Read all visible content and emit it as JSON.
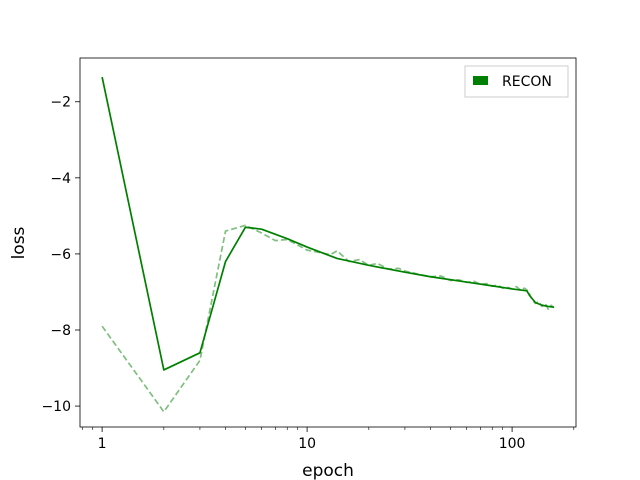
{
  "chart_data": {
    "type": "line",
    "xlabel": "epoch",
    "ylabel": "loss",
    "x_scale": "log",
    "xlim": [
      0.78,
      205
    ],
    "ylim": [
      -10.55,
      -0.85
    ],
    "x_major_ticks": [
      1,
      10,
      100
    ],
    "x_tick_labels": [
      "1",
      "10",
      "100"
    ],
    "y_ticks": [
      -10,
      -8,
      -6,
      -4,
      -2
    ],
    "y_tick_labels": [
      "−10",
      "−8",
      "−6",
      "−4",
      "−2"
    ],
    "grid": false,
    "legend": {
      "position": "upper right",
      "entries": [
        "RECON"
      ]
    },
    "series": [
      {
        "name": "RECON",
        "color": "#008000",
        "style": "solid",
        "x": [
          1,
          2,
          3,
          4,
          5,
          6,
          8,
          10,
          14,
          20,
          30,
          40,
          60,
          80,
          100,
          118,
          122,
          130,
          140,
          150,
          160
        ],
        "y": [
          -1.35,
          -9.05,
          -8.6,
          -6.2,
          -5.3,
          -5.35,
          -5.6,
          -5.82,
          -6.12,
          -6.3,
          -6.48,
          -6.6,
          -6.74,
          -6.84,
          -6.92,
          -6.97,
          -7.1,
          -7.28,
          -7.35,
          -7.38,
          -7.4
        ]
      },
      {
        "name": "",
        "color": "#008000",
        "opacity": 0.5,
        "style": "dashed",
        "x": [
          1,
          2,
          3,
          4,
          5,
          6,
          7,
          8,
          10,
          12,
          13,
          14,
          16,
          18,
          20,
          22,
          25,
          28,
          30,
          33,
          36,
          40,
          45,
          50,
          55,
          60,
          65,
          70,
          75,
          80,
          85,
          90,
          95,
          100,
          105,
          110,
          115,
          120,
          125,
          130,
          135,
          140,
          145,
          150,
          155,
          160
        ],
        "y": [
          -7.9,
          -10.15,
          -8.8,
          -5.4,
          -5.25,
          -5.45,
          -5.65,
          -5.62,
          -5.9,
          -5.98,
          -6.02,
          -5.92,
          -6.2,
          -6.15,
          -6.3,
          -6.25,
          -6.4,
          -6.38,
          -6.45,
          -6.5,
          -6.55,
          -6.6,
          -6.58,
          -6.7,
          -6.68,
          -6.75,
          -6.72,
          -6.8,
          -6.78,
          -6.85,
          -6.82,
          -6.9,
          -6.88,
          -6.92,
          -6.86,
          -6.95,
          -6.9,
          -6.98,
          -7.2,
          -7.3,
          -7.25,
          -7.38,
          -7.3,
          -7.45,
          -7.35,
          -7.42
        ]
      }
    ]
  }
}
